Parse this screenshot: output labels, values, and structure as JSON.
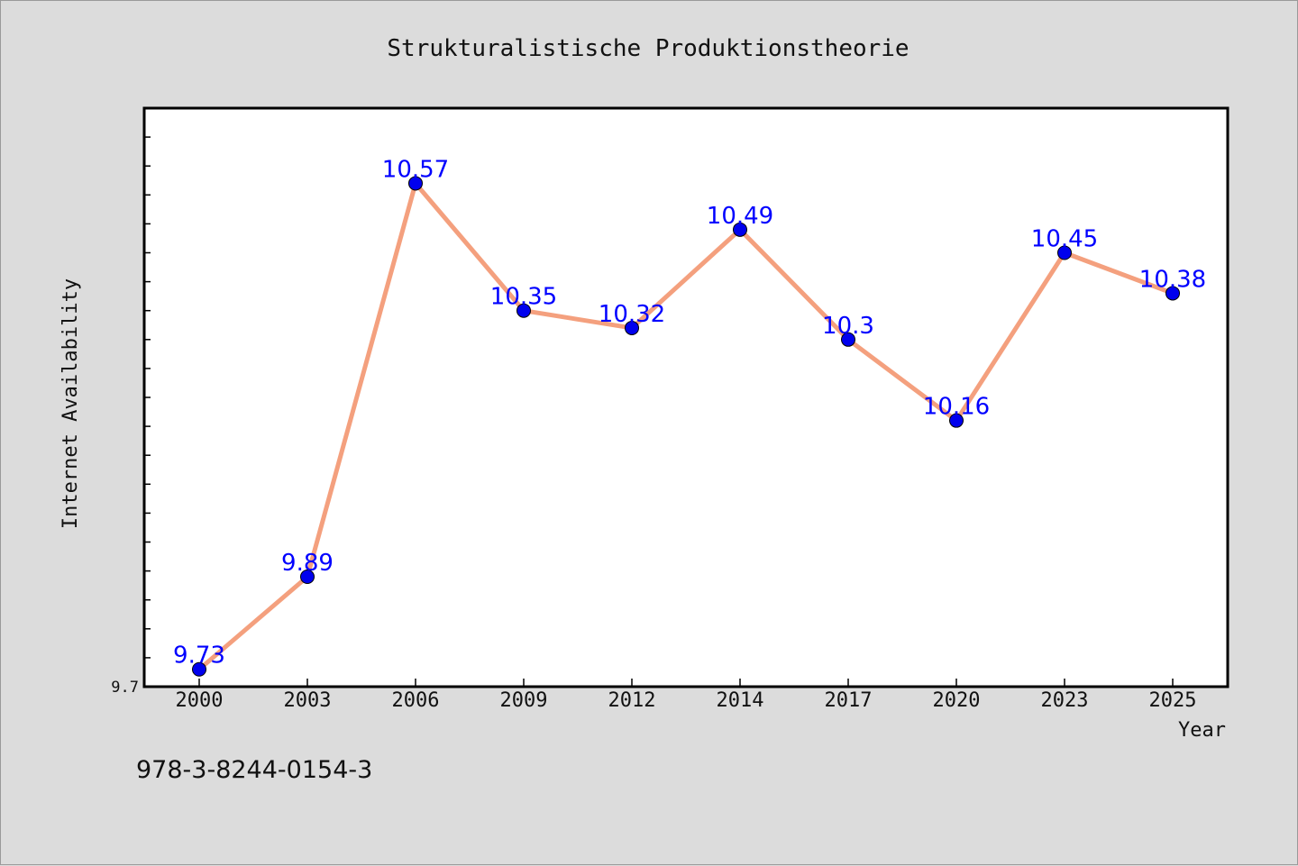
{
  "chart_data": {
    "type": "line",
    "title": "Strukturalistische Produktionstheorie",
    "xlabel": "Year",
    "ylabel": "Internet Availability",
    "categories": [
      "2000",
      "2003",
      "2006",
      "2009",
      "2012",
      "2014",
      "2017",
      "2020",
      "2023",
      "2025"
    ],
    "series": [
      {
        "values": [
          9.73,
          9.89,
          10.57,
          10.35,
          10.32,
          10.49,
          10.3,
          10.16,
          10.45,
          10.38
        ],
        "data_labels": [
          "9.73",
          "9.89",
          "10.57",
          "10.35",
          "10.32",
          "10.49",
          "10.3",
          "10.16",
          "10.45",
          "10.38"
        ]
      }
    ],
    "ylim": [
      9.7,
      10.7
    ],
    "y_tick_labels": [
      "9.7"
    ],
    "grid": false,
    "legend": "none",
    "colors": {
      "line": "#f4a07e",
      "marker": "#0000ee",
      "label": "#0000ff",
      "background": "#dcdcdc",
      "plot_background": "#ffffff"
    }
  },
  "footer": {
    "isbn": "978-3-8244-0154-3"
  }
}
